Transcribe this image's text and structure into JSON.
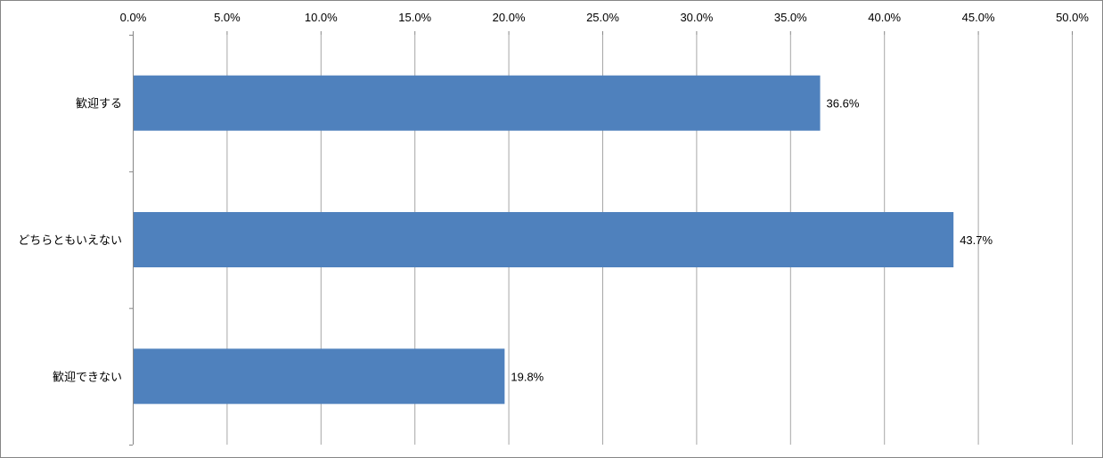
{
  "chart_data": {
    "type": "bar",
    "orientation": "horizontal",
    "categories": [
      "歓迎する",
      "どちらともいえない",
      "歓迎できない"
    ],
    "values": [
      36.6,
      43.7,
      19.8
    ],
    "data_labels": [
      "36.6%",
      "43.7%",
      "19.8%"
    ],
    "x_ticks": [
      "0.0%",
      "5.0%",
      "10.0%",
      "15.0%",
      "20.0%",
      "25.0%",
      "30.0%",
      "35.0%",
      "40.0%",
      "45.0%",
      "50.0%"
    ],
    "xlim": [
      0,
      50
    ],
    "x_axis_position": "top",
    "grid": true,
    "legend": "none",
    "bar_color": "#4f81bd",
    "grid_color": "#a6a6a6",
    "axis_color": "#868686"
  }
}
